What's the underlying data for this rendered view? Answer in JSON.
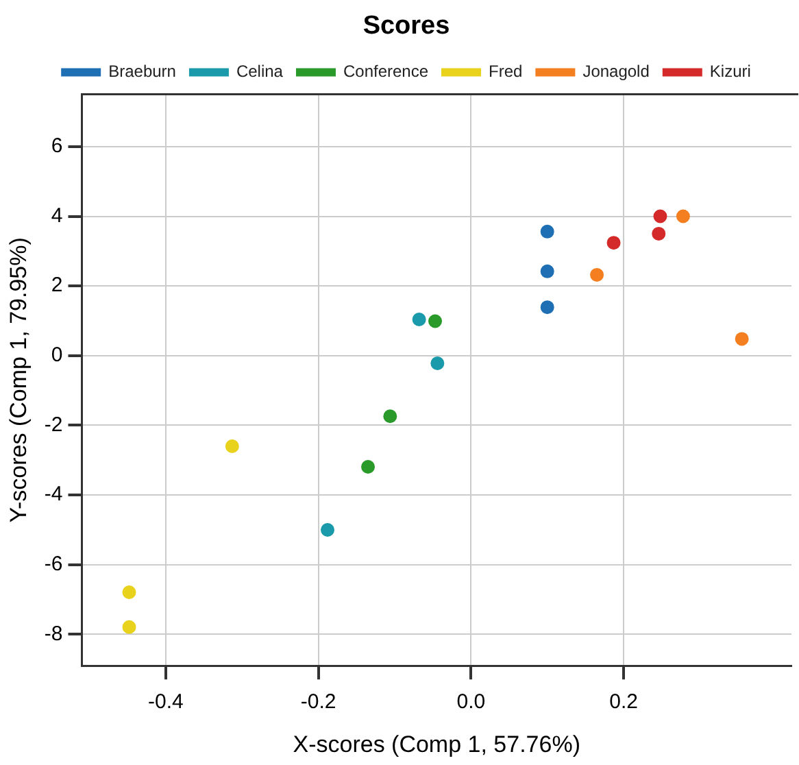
{
  "chart_data": {
    "type": "scatter",
    "title": "Scores",
    "xlabel": "X-scores (Comp 1, 57.76%)",
    "ylabel": "Y-scores (Comp 1, 79.95%)",
    "xlim": [
      -0.51,
      0.42
    ],
    "ylim": [
      -8.9,
      7.5
    ],
    "xticks": [
      -0.4,
      -0.2,
      {
        "value": 0,
        "label": "0.0"
      },
      0.2
    ],
    "yticks": [
      -8,
      -6,
      -4,
      -2,
      0,
      2,
      4,
      6
    ],
    "grid": true,
    "legend": "top",
    "marker": "circle",
    "series": [
      {
        "name": "Braeburn",
        "color": "#1f6fb4",
        "x": [
          0.1,
          0.1,
          0.1
        ],
        "values": [
          3.56,
          2.42,
          1.39
        ]
      },
      {
        "name": "Celina",
        "color": "#1a9aaa",
        "x": [
          -0.068,
          -0.044,
          -0.188
        ],
        "values": [
          1.04,
          -0.22,
          -5.0
        ]
      },
      {
        "name": "Conference",
        "color": "#2a9a2a",
        "x": [
          -0.047,
          -0.106,
          -0.135
        ],
        "values": [
          0.99,
          -1.74,
          -3.19
        ]
      },
      {
        "name": "Fred",
        "color": "#e8d21c",
        "x": [
          -0.313,
          -0.448,
          -0.448
        ],
        "values": [
          -2.6,
          -6.79,
          -7.79
        ]
      },
      {
        "name": "Jonagold",
        "color": "#f47f20",
        "x": [
          0.278,
          0.165,
          0.355
        ],
        "values": [
          4.0,
          2.32,
          0.48
        ]
      },
      {
        "name": "Kizuri",
        "color": "#d42a2a",
        "x": [
          0.248,
          0.246,
          0.187
        ],
        "values": [
          4.0,
          3.5,
          3.24
        ]
      }
    ]
  }
}
